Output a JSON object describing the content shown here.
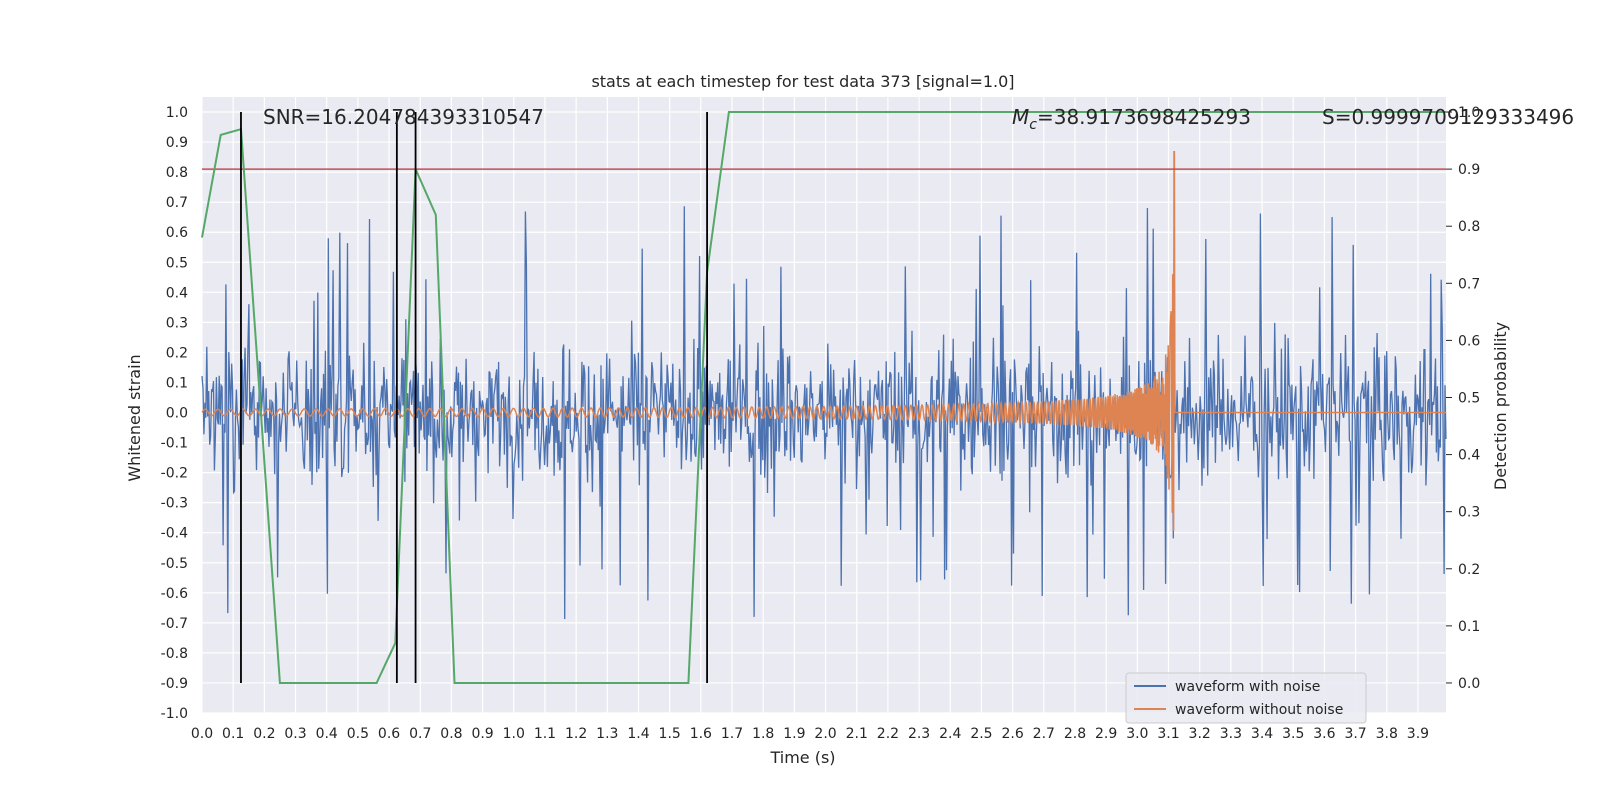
{
  "chart_data": {
    "type": "line",
    "title": "stats at each timestep for test data 373 [signal=1.0]",
    "xlabel": "Time (s)",
    "ylabel": "Whitened strain",
    "ylabel_right": "Detection probability",
    "xlim": [
      0.0,
      3.99
    ],
    "ylim": [
      -1.0,
      1.05
    ],
    "ylim_right": [
      0.0,
      1.0
    ],
    "x_ticks": [
      "0.0",
      "0.1",
      "0.2",
      "0.3",
      "0.4",
      "0.5",
      "0.6",
      "0.7",
      "0.8",
      "0.9",
      "1.0",
      "1.1",
      "1.2",
      "1.3",
      "1.4",
      "1.5",
      "1.6",
      "1.7",
      "1.8",
      "1.9",
      "2.0",
      "2.1",
      "2.2",
      "2.3",
      "2.4",
      "2.5",
      "2.6",
      "2.7",
      "2.8",
      "2.9",
      "3.0",
      "3.1",
      "3.2",
      "3.3",
      "3.4",
      "3.5",
      "3.6",
      "3.7",
      "3.8",
      "3.9"
    ],
    "y_ticks": [
      "-1.0",
      "-0.9",
      "-0.8",
      "-0.7",
      "-0.6",
      "-0.5",
      "-0.4",
      "-0.3",
      "-0.2",
      "-0.1",
      "0.0",
      "0.1",
      "0.2",
      "0.3",
      "0.4",
      "0.5",
      "0.6",
      "0.7",
      "0.8",
      "0.9",
      "1.0"
    ],
    "y_ticks_right": [
      "0.0",
      "0.1",
      "0.2",
      "0.3",
      "0.4",
      "0.5",
      "0.6",
      "0.7",
      "0.8",
      "0.9",
      "1.0"
    ],
    "annotations": {
      "snr": "SNR=16.204784393310547",
      "mc_symbol": "M",
      "mc_sub": "c",
      "mc_value": "=38.9173698425293",
      "s": "S=0.9999709129333496"
    },
    "legend": {
      "position": "lower-right",
      "entries": [
        "waveform with noise",
        "waveform without noise"
      ]
    },
    "series": [
      {
        "name": "waveform with noise",
        "axis": "left",
        "color": "#4c72b0",
        "kind": "noise",
        "amplitude_typical": 0.35,
        "amplitude_max": 0.7
      },
      {
        "name": "waveform without noise",
        "axis": "left",
        "color": "#dd8452",
        "kind": "chirp",
        "merger_time": 3.12,
        "peak_amplitude": 0.9
      },
      {
        "name": "detection probability",
        "axis": "right",
        "color": "#55a868",
        "x": [
          0.0,
          0.06,
          0.125,
          0.25,
          0.31,
          0.5,
          0.56,
          0.62,
          0.685,
          0.75,
          0.81,
          0.875,
          1.5,
          1.56,
          1.62,
          1.69,
          3.99
        ],
        "y": [
          0.78,
          0.96,
          0.97,
          0.0,
          0.0,
          0.0,
          0.0,
          0.07,
          0.9,
          0.82,
          0.0,
          0.0,
          0.0,
          0.0,
          0.72,
          1.0,
          1.0
        ]
      }
    ],
    "threshold": {
      "axis": "right",
      "value": 0.9,
      "color": "#c44e52"
    },
    "vertical_markers": [
      0.125,
      0.625,
      0.685,
      1.62
    ]
  }
}
